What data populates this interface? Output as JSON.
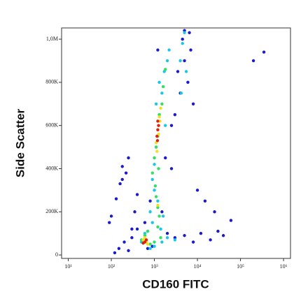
{
  "chart_data": {
    "type": "scatter",
    "x_label": "CD160 FITC",
    "y_label": "Side Scatter",
    "xscale": "log",
    "xlim": [
      7,
      1450000
    ],
    "ylim": [
      -16000,
      1052000
    ],
    "xticks": [
      {
        "value": 10,
        "label": "10¹"
      },
      {
        "value": 100,
        "label": "10²"
      },
      {
        "value": 1000,
        "label": "10³"
      },
      {
        "value": 10000,
        "label": "10⁴"
      },
      {
        "value": 100000,
        "label": "10⁵"
      },
      {
        "value": 1000000,
        "label": "10⁶"
      }
    ],
    "yticks": [
      0,
      {
        "value": 200000,
        "label": "200K"
      },
      {
        "value": 400000,
        "label": "400K"
      },
      {
        "value": 600000,
        "label": "600K"
      },
      {
        "value": 800000,
        "label": "800K"
      },
      {
        "value": 1000000,
        "label": "1,0M"
      }
    ],
    "series": [
      {
        "color": "#1a1ad0",
        "x": [
          150,
          200,
          250,
          300,
          350,
          400,
          180,
          120,
          2000,
          3000,
          5000,
          8000,
          12000,
          20000,
          30000,
          4000,
          6000,
          5000,
          4500,
          7000,
          3500,
          2500,
          1800,
          800,
          600,
          400,
          300,
          900,
          1500,
          2500,
          10000,
          15000,
          40000,
          100,
          130,
          250,
          220,
          5000,
          6500,
          8000,
          3000,
          1200,
          700,
          160,
          180,
          90,
          60000,
          200000,
          350000,
          25000
        ],
        "values": [
          30000,
          60000,
          20000,
          120000,
          200000,
          280000,
          350000,
          10000,
          100000,
          80000,
          90000,
          60000,
          100000,
          70000,
          110000,
          750000,
          800000,
          900000,
          1000000,
          950000,
          850000,
          600000,
          450000,
          250000,
          150000,
          120000,
          80000,
          40000,
          200000,
          400000,
          300000,
          250000,
          90000,
          180000,
          260000,
          450000,
          380000,
          1040000,
          1030000,
          700000,
          650000,
          950000,
          30000,
          330000,
          410000,
          150000,
          160000,
          900000,
          940000,
          200000
        ]
      },
      {
        "color": "#18c8e8",
        "x": [
          900,
          1000,
          1100,
          1300,
          1500,
          1700,
          2000,
          1200,
          800,
          900,
          1000,
          1100,
          1300,
          4000,
          4500,
          5000,
          5500,
          4200,
          600,
          700,
          500,
          1500,
          2000,
          3000,
          800,
          1000,
          1400,
          1600,
          2200,
          1800
        ],
        "values": [
          350000,
          420000,
          500000,
          650000,
          750000,
          850000,
          900000,
          250000,
          200000,
          150000,
          300000,
          700000,
          800000,
          900000,
          980000,
          1030000,
          850000,
          750000,
          100000,
          110000,
          60000,
          60000,
          80000,
          70000,
          30000,
          40000,
          120000,
          180000,
          950000,
          600000
        ]
      },
      {
        "color": "#30e060",
        "x": [
          1000,
          1100,
          1200,
          1300,
          1500,
          1600,
          1100,
          1200,
          1300,
          600,
          700,
          800,
          500,
          1000,
          1200,
          1400,
          1800,
          900,
          1050,
          1250
        ],
        "values": [
          450000,
          500000,
          550000,
          650000,
          700000,
          780000,
          270000,
          220000,
          180000,
          90000,
          110000,
          50000,
          70000,
          60000,
          130000,
          80000,
          860000,
          380000,
          320000,
          400000
        ]
      },
      {
        "color": "#f0e020",
        "x": [
          1100,
          1200,
          1300,
          1200,
          1400,
          550,
          650,
          600,
          700,
          1250,
          1150,
          1350
        ],
        "values": [
          520000,
          580000,
          640000,
          230000,
          680000,
          70000,
          60000,
          80000,
          50000,
          560000,
          480000,
          620000
        ]
      },
      {
        "color": "#e02010",
        "x": [
          1150,
          1200,
          1250,
          1200,
          600,
          650,
          550,
          1180
        ],
        "values": [
          550000,
          580000,
          600000,
          620000,
          60000,
          70000,
          55000,
          530000
        ]
      }
    ]
  }
}
